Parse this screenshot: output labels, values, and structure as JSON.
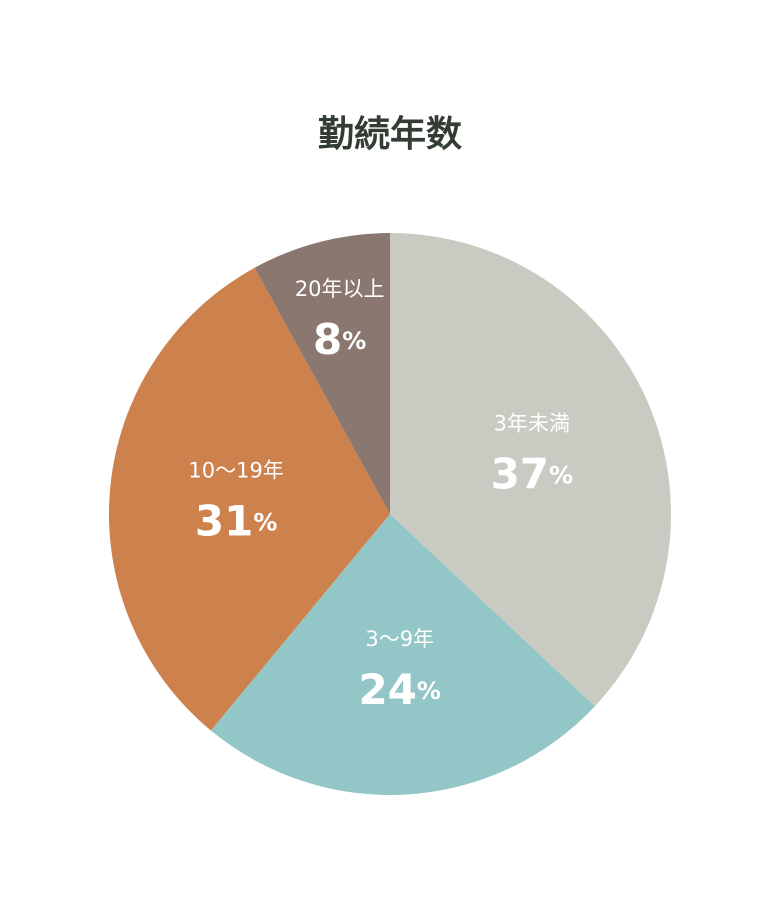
{
  "chart_data": {
    "type": "pie",
    "title": "勤続年数",
    "categories": [
      "3年未満",
      "3〜9年",
      "10〜19年",
      "20年以上"
    ],
    "values": [
      37,
      24,
      31,
      8
    ],
    "value_labels": [
      "37%",
      "24%",
      "31%",
      "8%"
    ],
    "colors": [
      "#c9cbc3",
      "#93c6c6",
      "#cd814d",
      "#8a7770"
    ]
  }
}
